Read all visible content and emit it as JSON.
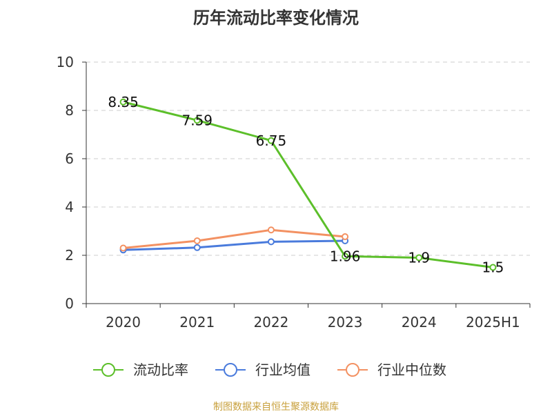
{
  "title": "历年流动比率变化情况",
  "source": "制图数据来自恒生聚源数据库",
  "source_color": "#c8a03c",
  "colors": {
    "axis": "#333333",
    "grid": "#cccccc"
  },
  "chart_data": {
    "type": "line",
    "title": "历年流动比率变化情况",
    "categories": [
      "2020",
      "2021",
      "2022",
      "2023",
      "2024",
      "2025H1"
    ],
    "ylim": [
      0,
      10
    ],
    "yticks": [
      0,
      2,
      4,
      6,
      8,
      10
    ],
    "grid": true,
    "legend_position": "bottom",
    "series": [
      {
        "name": "流动比率",
        "color": "#5cbf2a",
        "values": [
          8.35,
          7.59,
          6.75,
          1.96,
          1.9,
          1.5
        ],
        "labels": [
          "8.35",
          "7.59",
          "6.75",
          "1.96",
          "1.9",
          "1.5"
        ]
      },
      {
        "name": "行业均值",
        "color": "#4a7bdc",
        "values": [
          2.22,
          2.32,
          2.56,
          2.6,
          null,
          null
        ]
      },
      {
        "name": "行业中位数",
        "color": "#f39162",
        "values": [
          2.3,
          2.6,
          3.05,
          2.77,
          null,
          null
        ]
      }
    ]
  }
}
